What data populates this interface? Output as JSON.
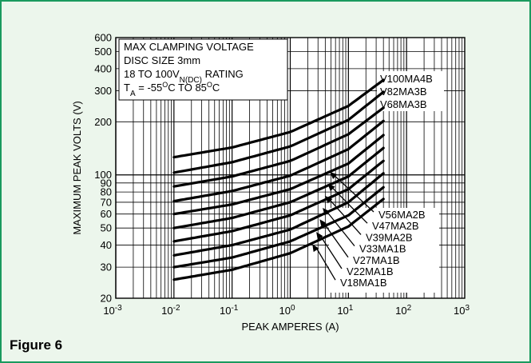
{
  "figure_label": "Figure 6",
  "chart_data": {
    "type": "line",
    "title": "",
    "xlabel": "PEAK AMPERES (A)",
    "ylabel": "MAXIMUM PEAK VOLTS (V)",
    "x_scale": "log",
    "y_scale": "log",
    "xlim": [
      0.001,
      1000
    ],
    "ylim": [
      20,
      600
    ],
    "grid": true,
    "x_ticks": [
      {
        "value": 0.001,
        "base": "10",
        "exp": "-3"
      },
      {
        "value": 0.01,
        "base": "10",
        "exp": "-2"
      },
      {
        "value": 0.1,
        "base": "10",
        "exp": "-1"
      },
      {
        "value": 1,
        "base": "10",
        "exp": "0"
      },
      {
        "value": 10,
        "base": "10",
        "exp": "1"
      },
      {
        "value": 100,
        "base": "10",
        "exp": "2"
      },
      {
        "value": 1000,
        "base": "10",
        "exp": "3"
      }
    ],
    "y_ticks": [
      {
        "value": 20,
        "label": "20"
      },
      {
        "value": 30,
        "label": "30"
      },
      {
        "value": 40,
        "label": "40"
      },
      {
        "value": 50,
        "label": "50"
      },
      {
        "value": 60,
        "label": "60"
      },
      {
        "value": 70,
        "label": "70"
      },
      {
        "value": 80,
        "label": "80"
      },
      {
        "value": 90,
        "label": "90"
      },
      {
        "value": 100,
        "label": "100"
      },
      {
        "value": 200,
        "label": "200"
      },
      {
        "value": 300,
        "label": "300"
      },
      {
        "value": 400,
        "label": "400"
      },
      {
        "value": 500,
        "label": "500"
      },
      {
        "value": 600,
        "label": "600"
      }
    ],
    "annotation": {
      "lines": [
        {
          "text": "MAX CLAMPING VOLTAGE"
        },
        {
          "text": "DISC SIZE 3mm"
        },
        {
          "pre": "18 TO 100V",
          "sub": "N(DC)",
          "post": " RATING"
        },
        {
          "pre": "T",
          "sub": "A",
          "mid": " = -55",
          "sup": "O",
          "mid2": "C TO 85",
          "sup2": "O",
          "post": "C"
        }
      ]
    },
    "legend_top": [
      "V100MA4B",
      "V82MA3B",
      "V68MA3B"
    ],
    "series": [
      {
        "name": "V100MA4B",
        "x": [
          0.01,
          0.1,
          1,
          10,
          40
        ],
        "y": [
          126,
          143,
          175,
          246,
          345
        ]
      },
      {
        "name": "V82MA3B",
        "x": [
          0.01,
          0.1,
          1,
          10,
          40
        ],
        "y": [
          103,
          118,
          145,
          205,
          295
        ]
      },
      {
        "name": "V68MA3B",
        "x": [
          0.01,
          0.1,
          1,
          10,
          40
        ],
        "y": [
          86,
          98,
          120,
          170,
          240
        ]
      },
      {
        "name": "V56MA2B",
        "x": [
          0.01,
          0.1,
          1,
          10,
          40
        ],
        "y": [
          71,
          81,
          99,
          140,
          202
        ]
      },
      {
        "name": "V47MA2B",
        "x": [
          0.01,
          0.1,
          1,
          10,
          40
        ],
        "y": [
          60,
          68,
          83,
          116,
          168
        ]
      },
      {
        "name": "V39MA2B",
        "x": [
          0.01,
          0.1,
          1,
          10,
          40
        ],
        "y": [
          50,
          57,
          70,
          98,
          142
        ]
      },
      {
        "name": "V33MA1B",
        "x": [
          0.01,
          0.1,
          1,
          10,
          40
        ],
        "y": [
          42,
          48,
          59,
          83,
          120
        ]
      },
      {
        "name": "V27MA1B",
        "x": [
          0.01,
          0.1,
          1,
          10,
          40
        ],
        "y": [
          35,
          40,
          49,
          70,
          102
        ]
      },
      {
        "name": "V22MA1B",
        "x": [
          0.01,
          0.1,
          1,
          10,
          40
        ],
        "y": [
          30,
          34,
          42,
          59,
          85
        ]
      },
      {
        "name": "V18MA1B",
        "x": [
          0.01,
          0.1,
          1,
          10,
          40
        ],
        "y": [
          25.5,
          29,
          36,
          51,
          73
        ]
      }
    ],
    "callouts": [
      {
        "name": "V56MA2B",
        "x": 4.8,
        "y": 104
      },
      {
        "name": "V47MA2B",
        "x": 4.4,
        "y": 89
      },
      {
        "name": "V39MA2B",
        "x": 4.0,
        "y": 76
      },
      {
        "name": "V33MA1B",
        "x": 3.6,
        "y": 65
      },
      {
        "name": "V27MA1B",
        "x": 3.2,
        "y": 56
      },
      {
        "name": "V22MA1B",
        "x": 2.8,
        "y": 47.5
      },
      {
        "name": "V18MA1B",
        "x": 2.4,
        "y": 40.5
      }
    ]
  }
}
